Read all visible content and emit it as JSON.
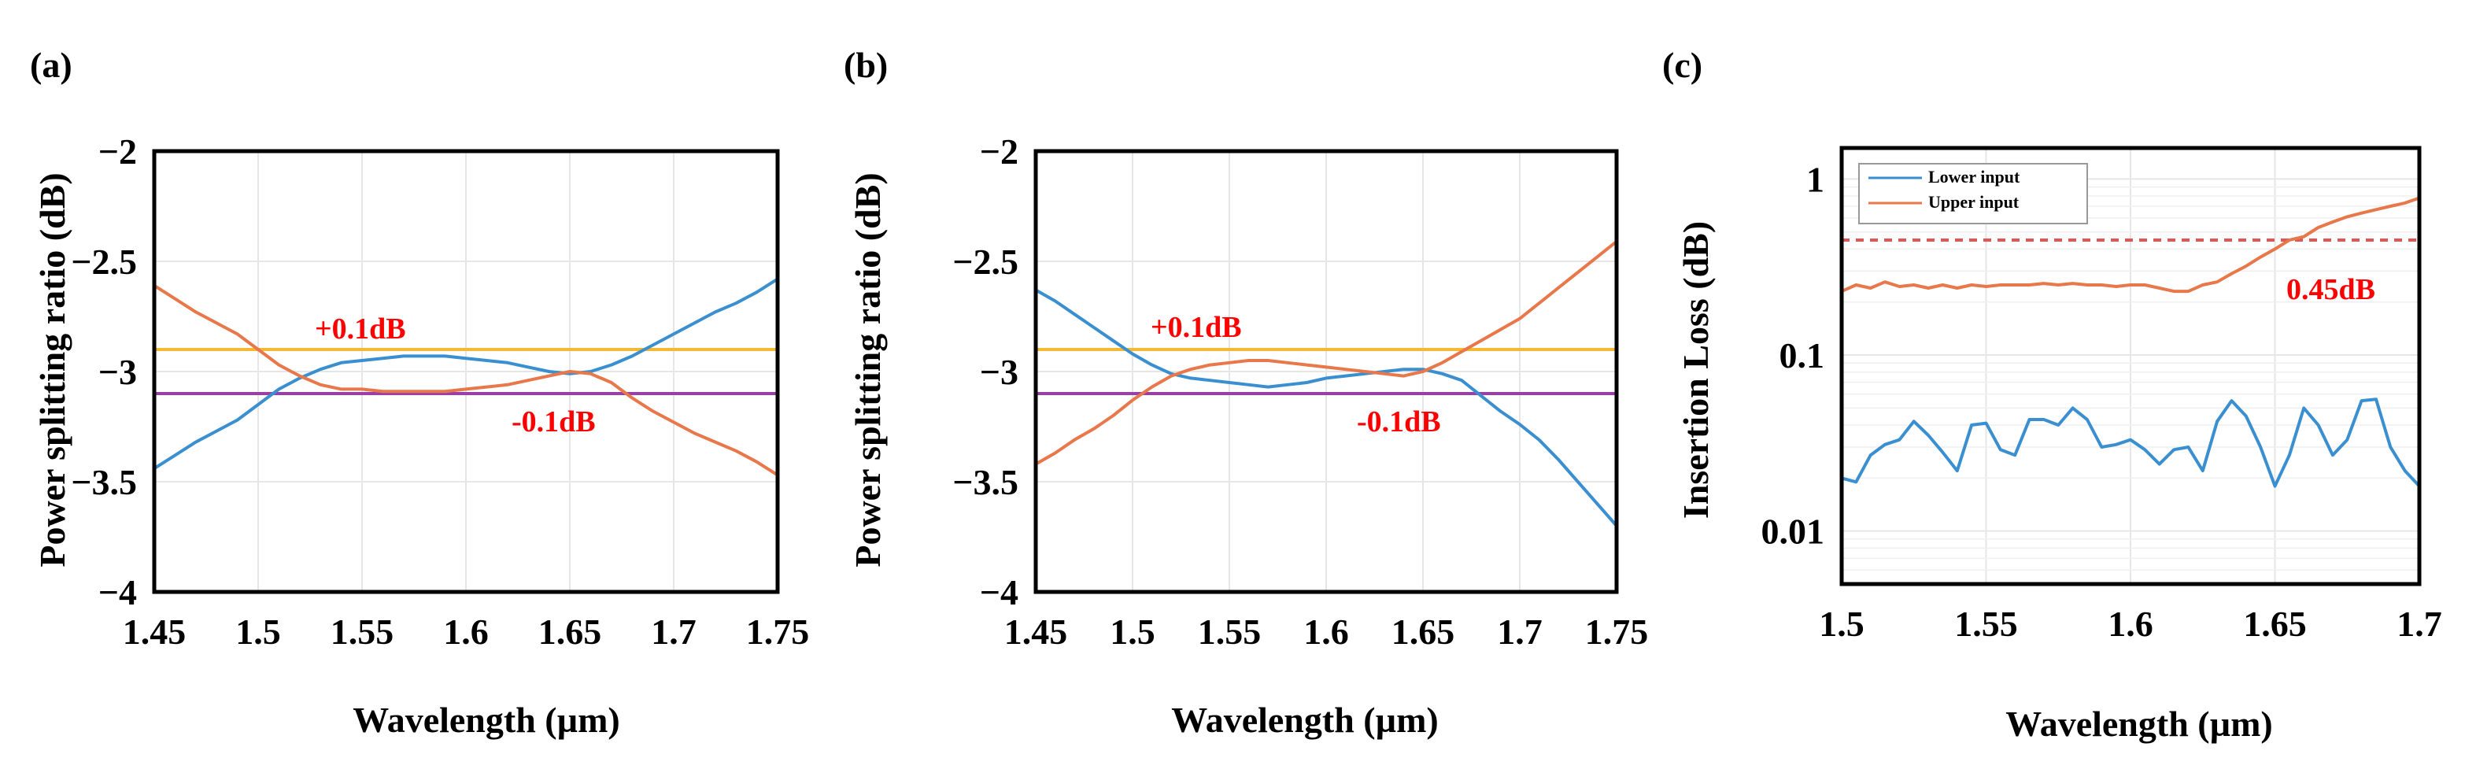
{
  "colors": {
    "blue": "#3a8fd0",
    "orange": "#e8774a",
    "yellow": "#f5b830",
    "purple": "#9a3fa8",
    "red": "#ff0000",
    "dashed": "#e05555"
  },
  "chart_data": [
    {
      "type": "line",
      "panel": "(a)",
      "ylabel": "Power splitting ratio (dB)",
      "xlabel": "Wavelength (µm)",
      "xlim": [
        1.45,
        1.75
      ],
      "ylim": [
        -4,
        -2
      ],
      "xticks": [
        "1.45",
        "1.5",
        "1.55",
        "1.6",
        "1.65",
        "1.7",
        "1.75"
      ],
      "yticks": [
        "-2",
        "-2.5",
        "-3",
        "-3.5",
        "-4"
      ],
      "annotations": [
        "+0.1dB",
        "-0.1dB"
      ],
      "hlines": [
        {
          "name": "+0.1dB",
          "y": -2.9,
          "color": "yellow"
        },
        {
          "name": "-0.1dB",
          "y": -3.1,
          "color": "purple"
        }
      ],
      "series": [
        {
          "name": "blue",
          "color": "blue",
          "x": [
            1.45,
            1.46,
            1.47,
            1.48,
            1.49,
            1.5,
            1.51,
            1.52,
            1.53,
            1.54,
            1.55,
            1.56,
            1.57,
            1.58,
            1.59,
            1.6,
            1.61,
            1.62,
            1.63,
            1.64,
            1.65,
            1.66,
            1.67,
            1.68,
            1.69,
            1.7,
            1.71,
            1.72,
            1.73,
            1.74,
            1.75
          ],
          "y": [
            -3.44,
            -3.38,
            -3.32,
            -3.27,
            -3.22,
            -3.15,
            -3.08,
            -3.03,
            -2.99,
            -2.96,
            -2.95,
            -2.94,
            -2.93,
            -2.93,
            -2.93,
            -2.94,
            -2.95,
            -2.96,
            -2.98,
            -3.0,
            -3.01,
            -3.0,
            -2.97,
            -2.93,
            -2.88,
            -2.83,
            -2.78,
            -2.73,
            -2.69,
            -2.64,
            -2.58
          ]
        },
        {
          "name": "orange",
          "color": "orange",
          "x": [
            1.45,
            1.46,
            1.47,
            1.48,
            1.49,
            1.5,
            1.51,
            1.52,
            1.53,
            1.54,
            1.55,
            1.56,
            1.57,
            1.58,
            1.59,
            1.6,
            1.61,
            1.62,
            1.63,
            1.64,
            1.65,
            1.66,
            1.67,
            1.68,
            1.69,
            1.7,
            1.71,
            1.72,
            1.73,
            1.74,
            1.75
          ],
          "y": [
            -2.61,
            -2.67,
            -2.73,
            -2.78,
            -2.83,
            -2.9,
            -2.97,
            -3.02,
            -3.06,
            -3.08,
            -3.08,
            -3.09,
            -3.09,
            -3.09,
            -3.09,
            -3.08,
            -3.07,
            -3.06,
            -3.04,
            -3.02,
            -3.0,
            -3.01,
            -3.05,
            -3.12,
            -3.18,
            -3.23,
            -3.28,
            -3.32,
            -3.36,
            -3.41,
            -3.47
          ]
        }
      ]
    },
    {
      "type": "line",
      "panel": "(b)",
      "ylabel": "Power splitting ratio (dB)",
      "xlabel": "Wavelength (µm)",
      "xlim": [
        1.45,
        1.75
      ],
      "ylim": [
        -4,
        -2
      ],
      "xticks": [
        "1.45",
        "1.5",
        "1.55",
        "1.6",
        "1.65",
        "1.7",
        "1.75"
      ],
      "yticks": [
        "-2",
        "-2.5",
        "-3",
        "-3.5",
        "-4"
      ],
      "annotations": [
        "+0.1dB",
        "-0.1dB"
      ],
      "hlines": [
        {
          "name": "+0.1dB",
          "y": -2.9,
          "color": "yellow"
        },
        {
          "name": "-0.1dB",
          "y": -3.1,
          "color": "purple"
        }
      ],
      "series": [
        {
          "name": "blue",
          "color": "blue",
          "x": [
            1.45,
            1.46,
            1.47,
            1.48,
            1.49,
            1.5,
            1.51,
            1.52,
            1.53,
            1.54,
            1.55,
            1.56,
            1.57,
            1.58,
            1.59,
            1.6,
            1.61,
            1.62,
            1.63,
            1.64,
            1.65,
            1.66,
            1.67,
            1.68,
            1.69,
            1.7,
            1.71,
            1.72,
            1.73,
            1.74,
            1.75
          ],
          "y": [
            -2.63,
            -2.68,
            -2.74,
            -2.8,
            -2.86,
            -2.92,
            -2.97,
            -3.01,
            -3.03,
            -3.04,
            -3.05,
            -3.06,
            -3.07,
            -3.06,
            -3.05,
            -3.03,
            -3.02,
            -3.01,
            -3.0,
            -2.99,
            -2.99,
            -3.01,
            -3.04,
            -3.11,
            -3.18,
            -3.24,
            -3.31,
            -3.4,
            -3.5,
            -3.6,
            -3.7
          ]
        },
        {
          "name": "orange",
          "color": "orange",
          "x": [
            1.45,
            1.46,
            1.47,
            1.48,
            1.49,
            1.5,
            1.51,
            1.52,
            1.53,
            1.54,
            1.55,
            1.56,
            1.57,
            1.58,
            1.59,
            1.6,
            1.61,
            1.62,
            1.63,
            1.64,
            1.65,
            1.66,
            1.67,
            1.68,
            1.69,
            1.7,
            1.71,
            1.72,
            1.73,
            1.74,
            1.75
          ],
          "y": [
            -3.42,
            -3.37,
            -3.31,
            -3.26,
            -3.2,
            -3.13,
            -3.07,
            -3.02,
            -2.99,
            -2.97,
            -2.96,
            -2.95,
            -2.95,
            -2.96,
            -2.97,
            -2.98,
            -2.99,
            -3.0,
            -3.01,
            -3.02,
            -3.0,
            -2.96,
            -2.91,
            -2.86,
            -2.81,
            -2.76,
            -2.69,
            -2.62,
            -2.55,
            -2.48,
            -2.41
          ]
        }
      ]
    },
    {
      "type": "line",
      "panel": "(c)",
      "yscale": "log",
      "ylabel": "Insertion Loss (dB)",
      "xlabel": "Wavelength (µm)",
      "xlim": [
        1.5,
        1.7
      ],
      "ylim": [
        0.005,
        1.5
      ],
      "xticks": [
        "1.5",
        "1.55",
        "1.6",
        "1.65",
        "1.7"
      ],
      "yticks": [
        "1",
        "0.1",
        "0.01"
      ],
      "legend": [
        "Lower input",
        "Upper input"
      ],
      "legend_position": "top-left",
      "annotations": [
        "0.45dB"
      ],
      "hlines": [
        {
          "name": "0.45dB",
          "y": 0.45,
          "color": "dashed",
          "dashed": true
        }
      ],
      "series": [
        {
          "name": "Lower input",
          "color": "blue",
          "x": [
            1.5,
            1.505,
            1.51,
            1.515,
            1.52,
            1.525,
            1.53,
            1.535,
            1.54,
            1.545,
            1.55,
            1.555,
            1.56,
            1.565,
            1.57,
            1.575,
            1.58,
            1.585,
            1.59,
            1.595,
            1.6,
            1.605,
            1.61,
            1.615,
            1.62,
            1.625,
            1.63,
            1.635,
            1.64,
            1.645,
            1.65,
            1.655,
            1.66,
            1.665,
            1.67,
            1.675,
            1.68,
            1.685,
            1.69,
            1.695,
            1.7
          ],
          "y": [
            0.02,
            0.019,
            0.027,
            0.031,
            0.033,
            0.042,
            0.035,
            0.028,
            0.022,
            0.04,
            0.041,
            0.029,
            0.027,
            0.043,
            0.043,
            0.04,
            0.05,
            0.043,
            0.03,
            0.031,
            0.033,
            0.029,
            0.024,
            0.029,
            0.03,
            0.022,
            0.042,
            0.055,
            0.045,
            0.03,
            0.018,
            0.027,
            0.05,
            0.04,
            0.027,
            0.033,
            0.055,
            0.056,
            0.03,
            0.022,
            0.018
          ]
        },
        {
          "name": "Upper input",
          "color": "orange",
          "x": [
            1.5,
            1.505,
            1.51,
            1.515,
            1.52,
            1.525,
            1.53,
            1.535,
            1.54,
            1.545,
            1.55,
            1.555,
            1.56,
            1.565,
            1.57,
            1.575,
            1.58,
            1.585,
            1.59,
            1.595,
            1.6,
            1.605,
            1.61,
            1.615,
            1.62,
            1.625,
            1.63,
            1.635,
            1.64,
            1.645,
            1.65,
            1.655,
            1.66,
            1.665,
            1.67,
            1.675,
            1.68,
            1.685,
            1.69,
            1.695,
            1.7
          ],
          "y": [
            0.23,
            0.25,
            0.24,
            0.26,
            0.245,
            0.25,
            0.24,
            0.25,
            0.24,
            0.25,
            0.245,
            0.25,
            0.25,
            0.25,
            0.255,
            0.25,
            0.255,
            0.25,
            0.25,
            0.245,
            0.25,
            0.25,
            0.24,
            0.23,
            0.23,
            0.25,
            0.26,
            0.29,
            0.32,
            0.36,
            0.4,
            0.45,
            0.47,
            0.53,
            0.57,
            0.61,
            0.64,
            0.67,
            0.7,
            0.73,
            0.78
          ]
        }
      ]
    }
  ]
}
